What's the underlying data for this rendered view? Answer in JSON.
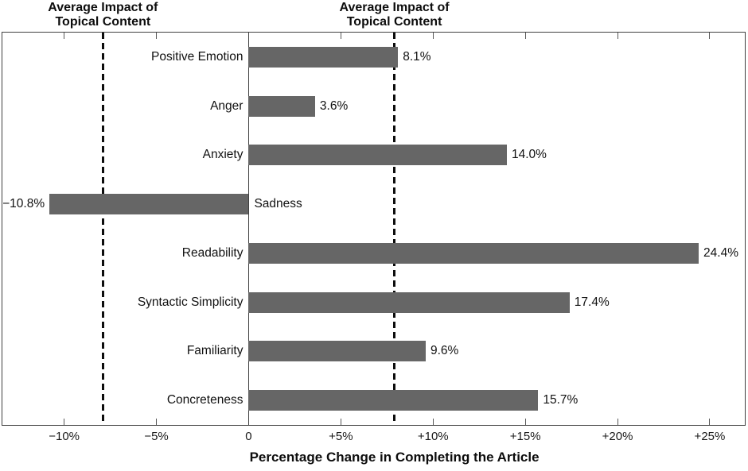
{
  "chart_data": {
    "type": "bar",
    "orientation": "horizontal",
    "title": "",
    "xlabel": "Percentage Change in Completing the Article",
    "ylabel": "",
    "categories": [
      "Positive Emotion",
      "Anger",
      "Anxiety",
      "Sadness",
      "Readability",
      "Syntactic Simplicity",
      "Familiarity",
      "Concreteness"
    ],
    "values": [
      8.1,
      3.6,
      14.0,
      -10.8,
      24.4,
      17.4,
      9.6,
      15.7
    ],
    "value_labels": [
      "8.1%",
      "3.6%",
      "14.0%",
      "−10.8%",
      "24.4%",
      "17.4%",
      "9.6%",
      "15.7%"
    ],
    "x_ticks": [
      -10,
      -5,
      0,
      5,
      10,
      15,
      20,
      25
    ],
    "x_tick_labels": [
      "−10%",
      "−5%",
      "0",
      "+5%",
      "+10%",
      "+15%",
      "+20%",
      "+25%"
    ],
    "xlim": [
      -13.35,
      26.9
    ],
    "grid": false,
    "legend": "none",
    "reference_lines": [
      {
        "x": -7.9,
        "style": "dashed",
        "label_line1": "Average Impact of",
        "label_line2": "Topical Content"
      },
      {
        "x": 7.9,
        "style": "dashed",
        "label_line1": "Average Impact of",
        "label_line2": "Topical Content"
      }
    ],
    "colors": {
      "bar": "#666666",
      "axis_box": "#404040",
      "reference_line": "#0d0d0d",
      "text": "#111111"
    }
  }
}
